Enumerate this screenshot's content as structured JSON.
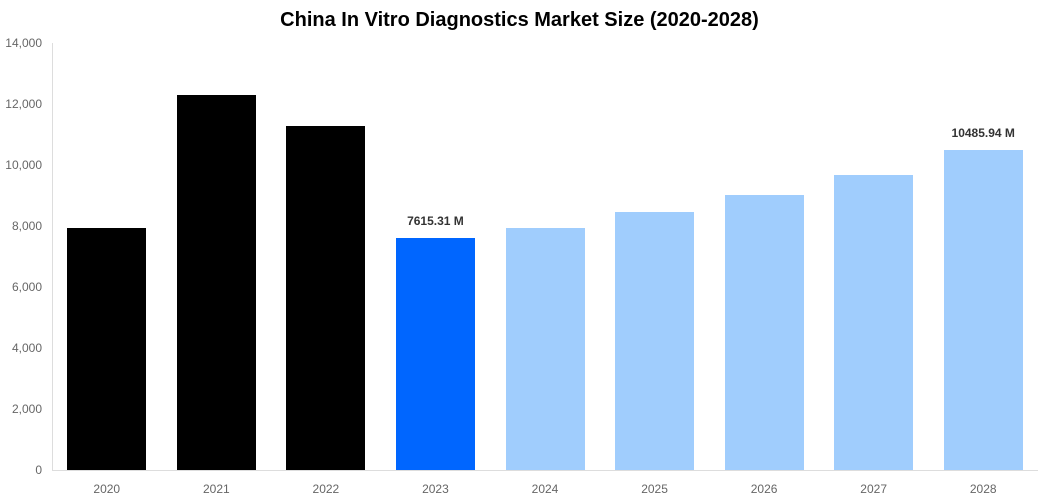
{
  "chart_data": {
    "type": "bar",
    "title": "China In Vitro Diagnostics Market Size (2020-2028)",
    "xlabel": "",
    "ylabel": "",
    "ylim": [
      0,
      14000
    ],
    "yticks": [
      0,
      2000,
      4000,
      6000,
      8000,
      10000,
      12000,
      14000
    ],
    "ytick_labels": [
      "0",
      "2,000",
      "4,000",
      "6,000",
      "8,000",
      "10,000",
      "12,000",
      "14,000"
    ],
    "grid": false,
    "legend": null,
    "categories": [
      "2020",
      "2021",
      "2022",
      "2023",
      "2024",
      "2025",
      "2026",
      "2027",
      "2028"
    ],
    "values": [
      7950,
      12300,
      11280,
      7615.31,
      7940,
      8460,
      9020,
      9670,
      10485.94
    ],
    "bar_colors": [
      "#000000",
      "#000000",
      "#000000",
      "#0066ff",
      "#a0cdfd",
      "#a0cdfd",
      "#a0cdfd",
      "#a0cdfd",
      "#a0cdfd"
    ],
    "annotations": [
      {
        "category": "2023",
        "text": "7615.31 M"
      },
      {
        "category": "2028",
        "text": "10485.94 M"
      }
    ]
  }
}
